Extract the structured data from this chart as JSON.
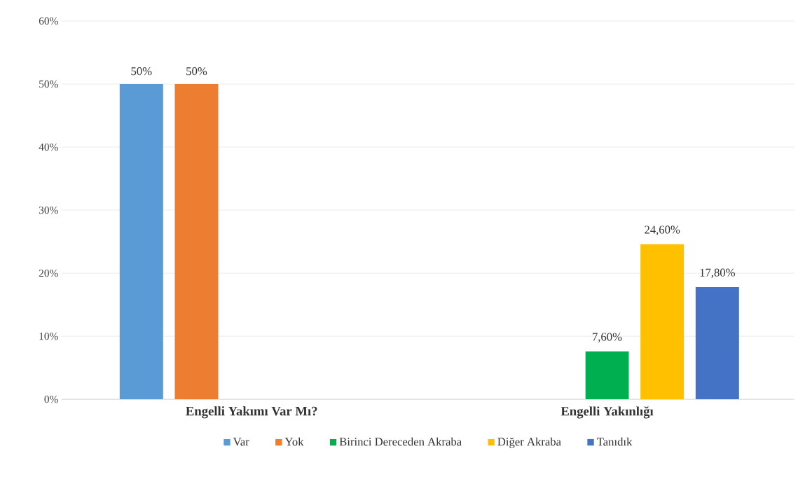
{
  "chart_data": {
    "type": "bar",
    "categories": [
      "Engelli Yakımı Var Mı?",
      "Engelli Yakınlığı"
    ],
    "series": [
      {
        "name": "Var",
        "color": "#5b9bd5",
        "values": [
          50,
          null
        ],
        "value_labels": [
          "50%",
          null
        ]
      },
      {
        "name": "Yok",
        "color": "#ed7d31",
        "values": [
          50,
          null
        ],
        "value_labels": [
          "50%",
          null
        ]
      },
      {
        "name": "Birinci Dereceden Akraba",
        "color": "#00b050",
        "values": [
          null,
          7.6
        ],
        "value_labels": [
          null,
          "7,60%"
        ]
      },
      {
        "name": "Diğer Akraba",
        "color": "#ffc000",
        "values": [
          null,
          24.6
        ],
        "value_labels": [
          null,
          "24,60%"
        ]
      },
      {
        "name": "Tanıdık",
        "color": "#4472c4",
        "values": [
          null,
          17.8
        ],
        "value_labels": [
          null,
          "17,80%"
        ]
      }
    ],
    "ylim": [
      0,
      60
    ],
    "yticks": [
      {
        "value": 0,
        "label": "0%"
      },
      {
        "value": 10,
        "label": "10%"
      },
      {
        "value": 20,
        "label": "20%"
      },
      {
        "value": 30,
        "label": "30%"
      },
      {
        "value": 40,
        "label": "40%"
      },
      {
        "value": 50,
        "label": "50%"
      },
      {
        "value": 60,
        "label": "60%"
      }
    ],
    "grid": "y",
    "legend": "bottom"
  }
}
